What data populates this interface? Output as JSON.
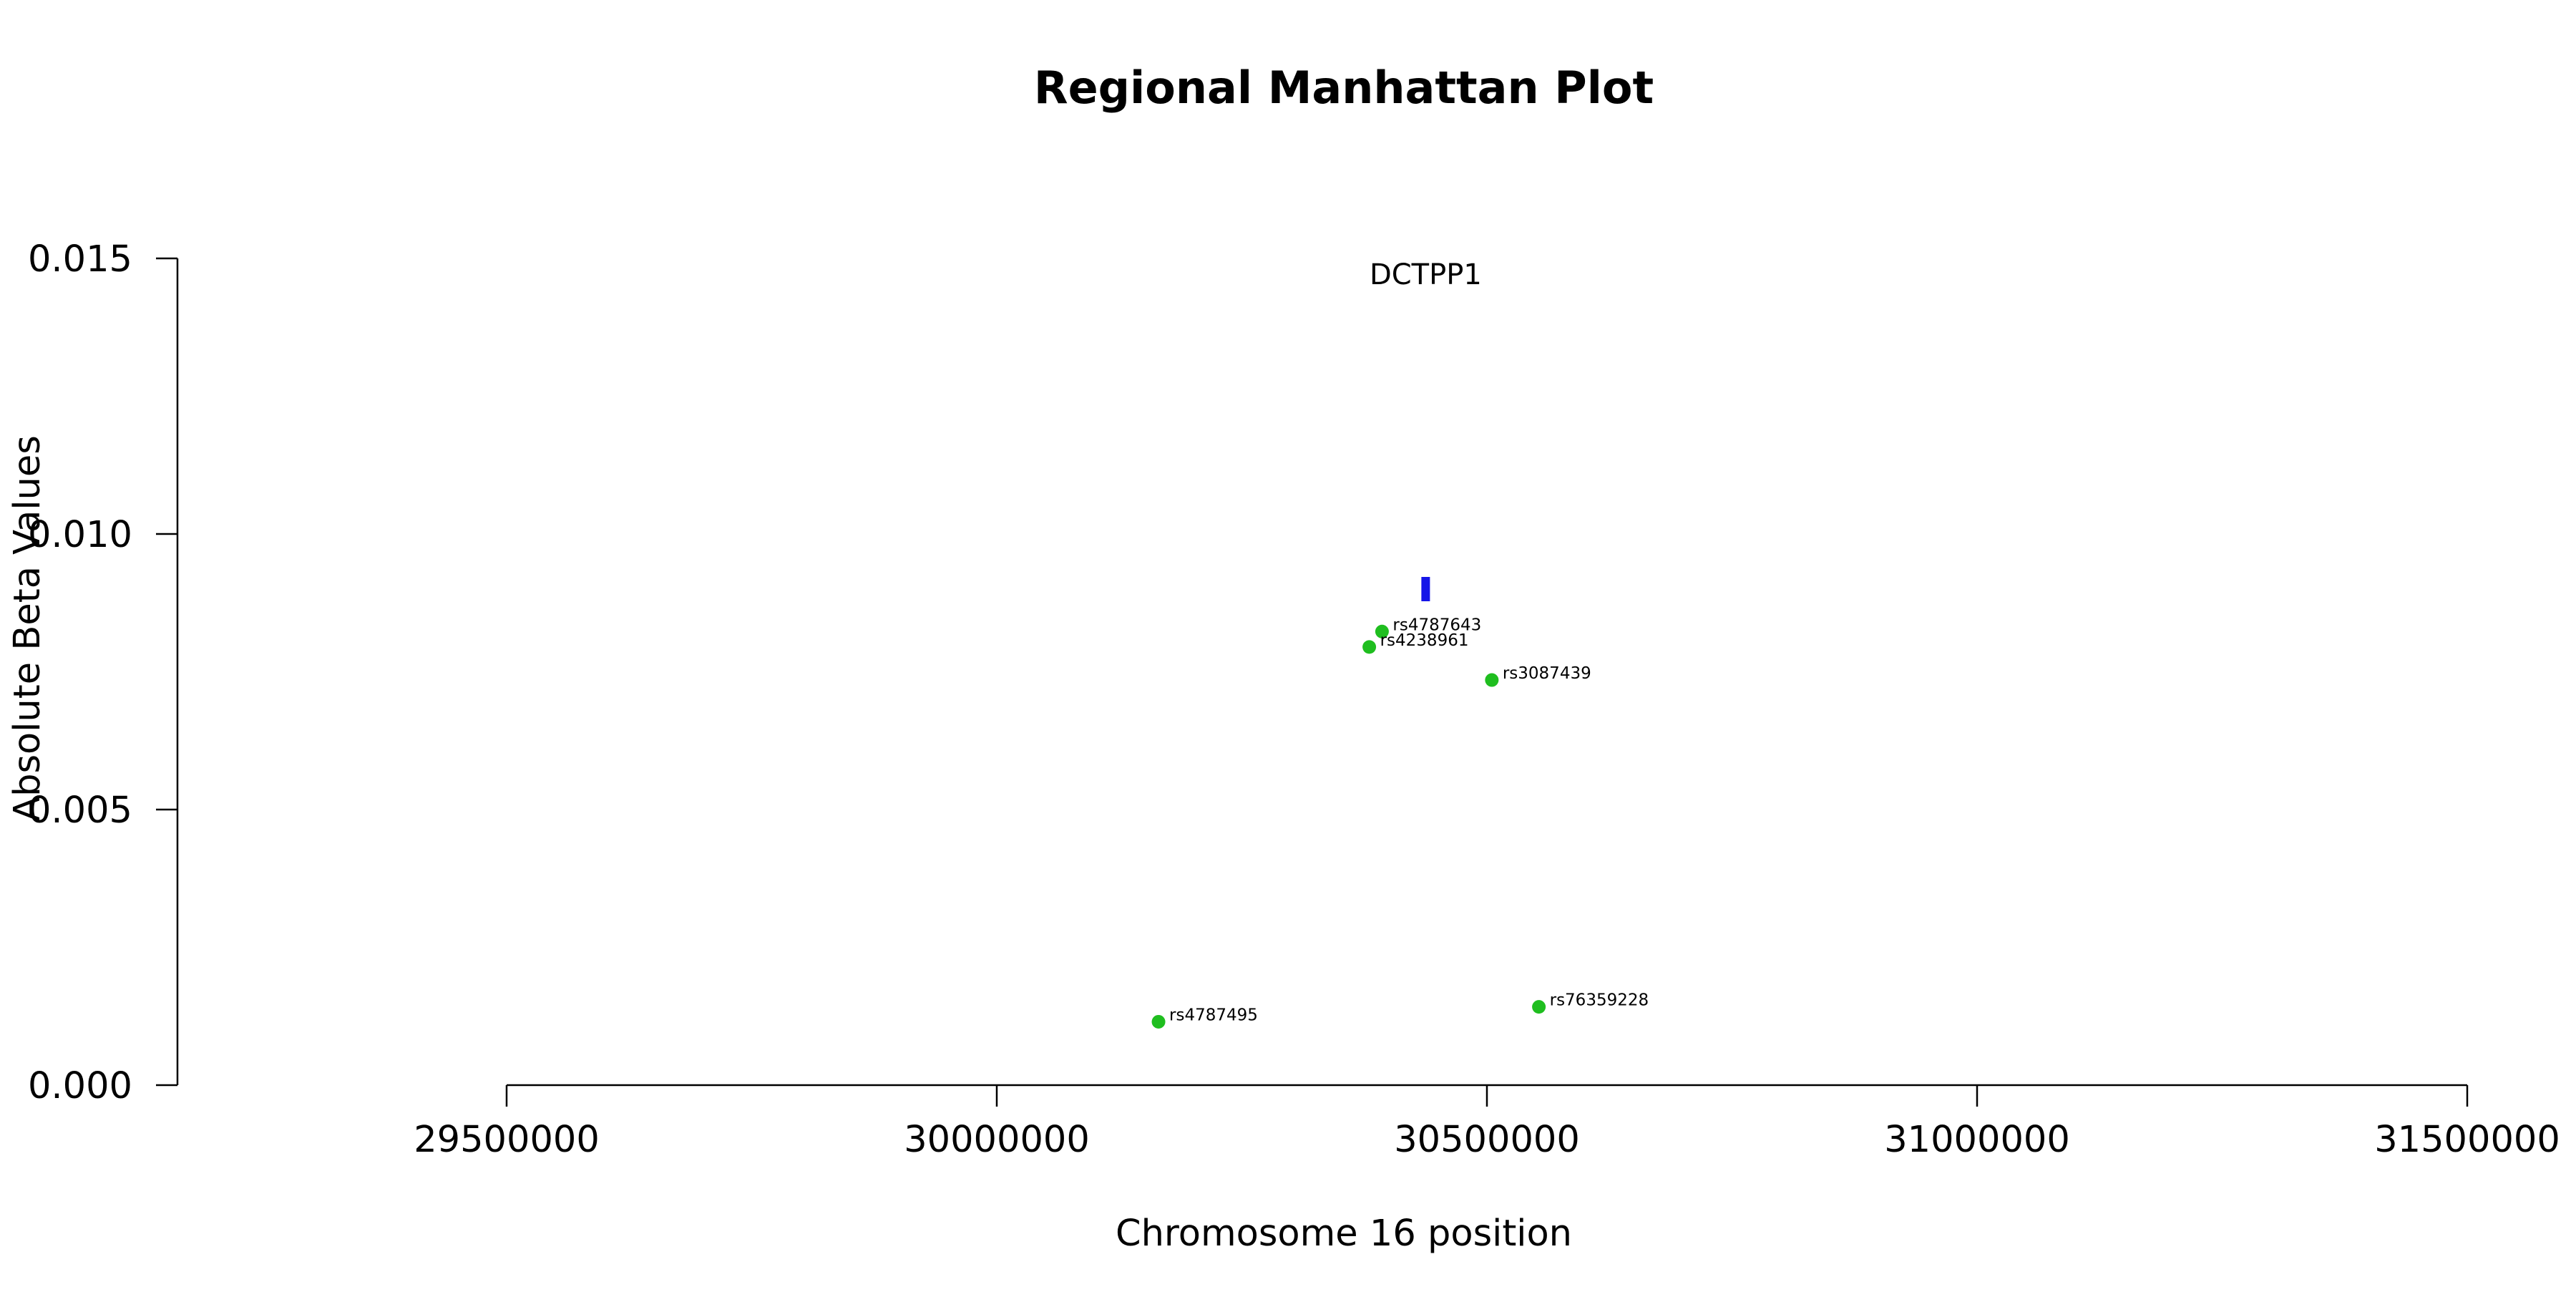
{
  "chart_data": {
    "type": "scatter",
    "title": "Regional Manhattan Plot",
    "xlabel": "Chromosome 16 position",
    "ylabel": "Absolute Beta Values",
    "xlim": [
      29500000,
      31500000
    ],
    "ylim": [
      0,
      0.015
    ],
    "x_ticks": [
      29500000,
      30000000,
      30500000,
      31000000,
      31500000
    ],
    "x_tick_labels": [
      "29500000",
      "30000000",
      "30500000",
      "31000000",
      "31500000"
    ],
    "y_ticks": [
      0,
      0.005,
      0.01,
      0.015
    ],
    "y_tick_labels": [
      "0.000",
      "0.005",
      "0.010",
      "0.015"
    ],
    "grid": false,
    "gene": {
      "name": "DCTPP1",
      "start": 30434000,
      "end": 30441000,
      "value": 0.009,
      "color": "#1515e8"
    },
    "point_color": "#1fbe1f",
    "points": [
      {
        "label": "rs4787643",
        "x": 30393000,
        "y": 0.00823
      },
      {
        "label": "rs4238961",
        "x": 30380000,
        "y": 0.00795
      },
      {
        "label": "rs3087439",
        "x": 30505000,
        "y": 0.00735
      },
      {
        "label": "rs4787495",
        "x": 30165000,
        "y": 0.00115
      },
      {
        "label": "rs76359228",
        "x": 30553000,
        "y": 0.00142
      }
    ]
  }
}
